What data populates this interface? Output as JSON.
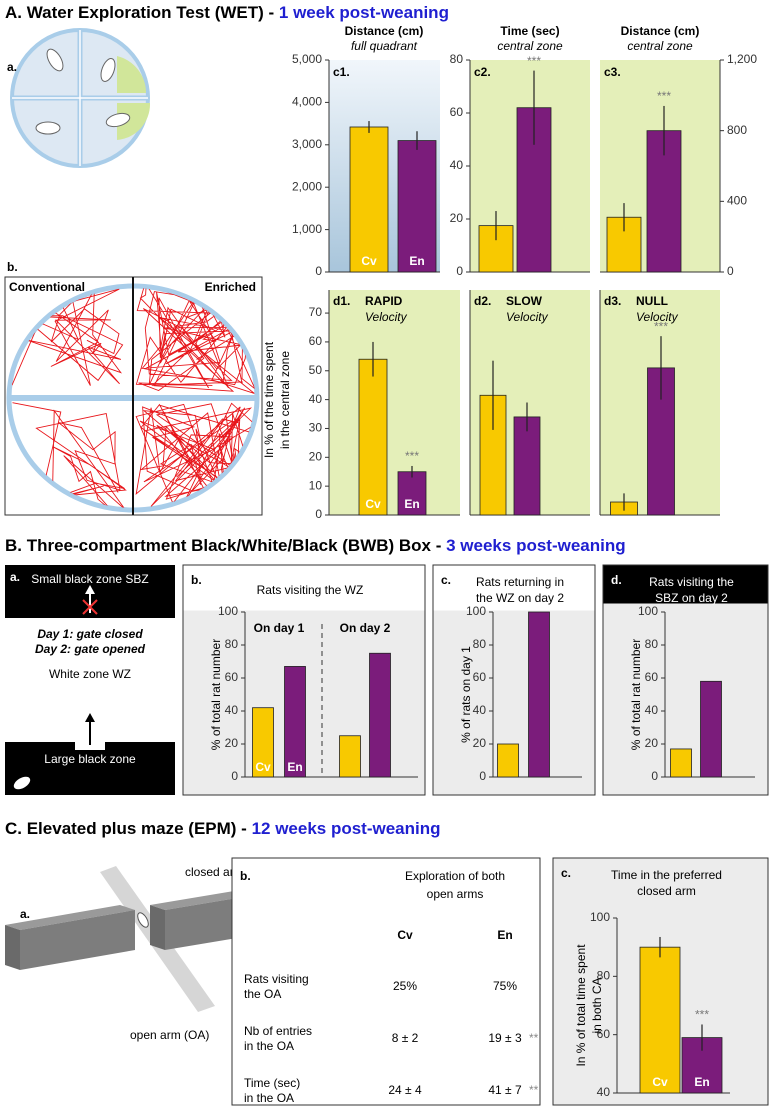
{
  "sections": [
    {
      "title": "A. Water Exploration Test (WET) - ",
      "highlight": "1 week post-weaning"
    },
    {
      "title": "B. Three-compartment Black/White/Black (BWB) Box - ",
      "highlight": "3 weeks post-weaning"
    },
    {
      "title": "C. Elevated plus maze (EPM) - ",
      "highlight": "12 weeks post-weaning"
    }
  ],
  "diagrams": {
    "wet_a": {
      "label": "a."
    },
    "wet_b": {
      "label": "b.",
      "left": "Conventional",
      "right": "Enriched"
    },
    "bwb_a": {
      "label": "a.",
      "top": "Small black zone SBZ",
      "day1": "Day 1: gate closed",
      "day2": "Day 2: gate opened",
      "middle": "White zone WZ",
      "bottom": "Large black zone"
    },
    "epm_a": {
      "label": "a.",
      "closed": "closed arm (CA)",
      "open": "open arm (OA)"
    }
  },
  "shared_ylabel": [
    "In % of the time spent",
    "in the central zone"
  ],
  "table": {
    "label": "b.",
    "title": [
      "Exploration of both",
      "open arms"
    ],
    "columns": [
      "Cv",
      "En"
    ],
    "rows": [
      {
        "label": [
          "Rats visiting",
          "the OA"
        ],
        "cv": "25%",
        "en": "75%"
      },
      {
        "label": [
          "Nb of entries",
          "in the OA"
        ],
        "cv": "8 ± 2",
        "en": "19 ± 3",
        "en_sig": "**"
      },
      {
        "label": [
          "Time (sec)",
          "in the OA"
        ],
        "cv": "24 ± 4",
        "en": "41 ± 7",
        "en_sig": "**"
      }
    ]
  },
  "chart_data": [
    {
      "type": "bar",
      "panel": "c1.",
      "title": "Distance (cm)",
      "subtitle": "full quadrant",
      "categories": [
        "Cv",
        "En"
      ],
      "values": [
        3420,
        3100
      ],
      "errors": [
        140,
        220
      ],
      "colors": [
        "#f8c900",
        "#7b1c7b"
      ],
      "ylim": [
        0,
        5000
      ],
      "yticks": [
        0,
        {
          "value": 1000,
          "label": "1,000"
        },
        {
          "value": 2000,
          "label": "2,000"
        },
        {
          "value": 3000,
          "label": "3,000"
        },
        {
          "value": 4000,
          "label": "4,000"
        },
        {
          "value": 5000,
          "label": "5,000"
        }
      ]
    },
    {
      "type": "bar",
      "panel": "c2.",
      "title": "Time (sec)",
      "subtitle": "central zone",
      "categories": [
        null,
        null
      ],
      "values": [
        17.5,
        62
      ],
      "errors": [
        5.5,
        14
      ],
      "significance": [
        null,
        "***"
      ],
      "colors": [
        "#f8c900",
        "#7b1c7b"
      ],
      "ylim": [
        0,
        80
      ],
      "yticks": [
        0,
        20,
        40,
        60,
        80
      ]
    },
    {
      "type": "bar",
      "panel": "c3.",
      "title": "Distance (cm)",
      "subtitle": "central zone",
      "categories": [
        null,
        null
      ],
      "values": [
        310,
        800
      ],
      "errors": [
        80,
        140
      ],
      "significance": [
        null,
        "***"
      ],
      "colors": [
        "#f8c900",
        "#7b1c7b"
      ],
      "ylim": [
        0,
        1200
      ],
      "yticks": [
        0,
        400,
        800,
        {
          "value": 1200,
          "label": "1,200"
        }
      ]
    },
    {
      "type": "bar",
      "panel": "d1.",
      "title": "RAPID",
      "subtitle": "Velocity",
      "categories": [
        "Cv",
        "En"
      ],
      "values": [
        54,
        15
      ],
      "errors": [
        6,
        2
      ],
      "significance": [
        null,
        "***"
      ],
      "colors": [
        "#f8c900",
        "#7b1c7b"
      ],
      "ylim": [
        0,
        78
      ],
      "yticks": [
        0,
        10,
        20,
        30,
        40,
        50,
        60,
        70
      ]
    },
    {
      "type": "bar",
      "panel": "d2.",
      "title": "SLOW",
      "subtitle": "Velocity",
      "categories": [
        null,
        null
      ],
      "values": [
        41.5,
        34
      ],
      "errors": [
        12,
        5
      ],
      "colors": [
        "#f8c900",
        "#7b1c7b"
      ],
      "ylim": [
        0,
        78
      ]
    },
    {
      "type": "bar",
      "panel": "d3.",
      "title": "NULL",
      "subtitle": "Velocity",
      "categories": [
        null,
        null
      ],
      "values": [
        4.5,
        51
      ],
      "errors": [
        3,
        11
      ],
      "significance": [
        null,
        "***"
      ],
      "colors": [
        "#f8c900",
        "#7b1c7b"
      ],
      "ylim": [
        0,
        78
      ]
    },
    {
      "type": "grouped_bar",
      "panel": "b.",
      "title": [
        "Rats visiting the WZ"
      ],
      "ylabel": [
        "% of total rat number"
      ],
      "categories": [
        "On day 1",
        "On day 2"
      ],
      "series": [
        {
          "name": "Cv",
          "color": "#f8c900",
          "values": [
            42,
            25
          ]
        },
        {
          "name": "En",
          "color": "#7b1c7b",
          "values": [
            67,
            75
          ]
        }
      ],
      "ylim": [
        0,
        100
      ],
      "yticks": [
        0,
        20,
        40,
        60,
        80,
        100
      ]
    },
    {
      "type": "bar",
      "panel": "c.",
      "title": [
        "Rats returning in",
        "the WZ on day 2"
      ],
      "ylabel": [
        "% of rats on day 1"
      ],
      "categories": [
        null,
        null
      ],
      "values": [
        20,
        100
      ],
      "colors": [
        "#f8c900",
        "#7b1c7b"
      ],
      "ylim": [
        0,
        100
      ],
      "yticks": [
        0,
        20,
        40,
        60,
        80,
        100
      ]
    },
    {
      "type": "bar",
      "panel": "d.",
      "title": [
        "Rats visiting the",
        "SBZ on day 2"
      ],
      "ylabel": [
        "% of total rat number"
      ],
      "categories": [
        null,
        null
      ],
      "values": [
        17,
        58
      ],
      "colors": [
        "#f8c900",
        "#7b1c7b"
      ],
      "ylim": [
        0,
        100
      ],
      "yticks": [
        0,
        20,
        40,
        60,
        80,
        100
      ]
    },
    {
      "type": "bar",
      "panel": "c.",
      "title": [
        "Time in the preferred",
        "closed arm"
      ],
      "ylabel": [
        "In % of total time spent",
        "in both CA"
      ],
      "categories": [
        "Cv",
        "En"
      ],
      "values": [
        90,
        59
      ],
      "errors": [
        3.5,
        4.5
      ],
      "significance": [
        null,
        "***"
      ],
      "colors": [
        "#f8c900",
        "#7b1c7b"
      ],
      "ylim": [
        40,
        100
      ],
      "yticks": [
        40,
        60,
        80,
        100
      ]
    }
  ]
}
